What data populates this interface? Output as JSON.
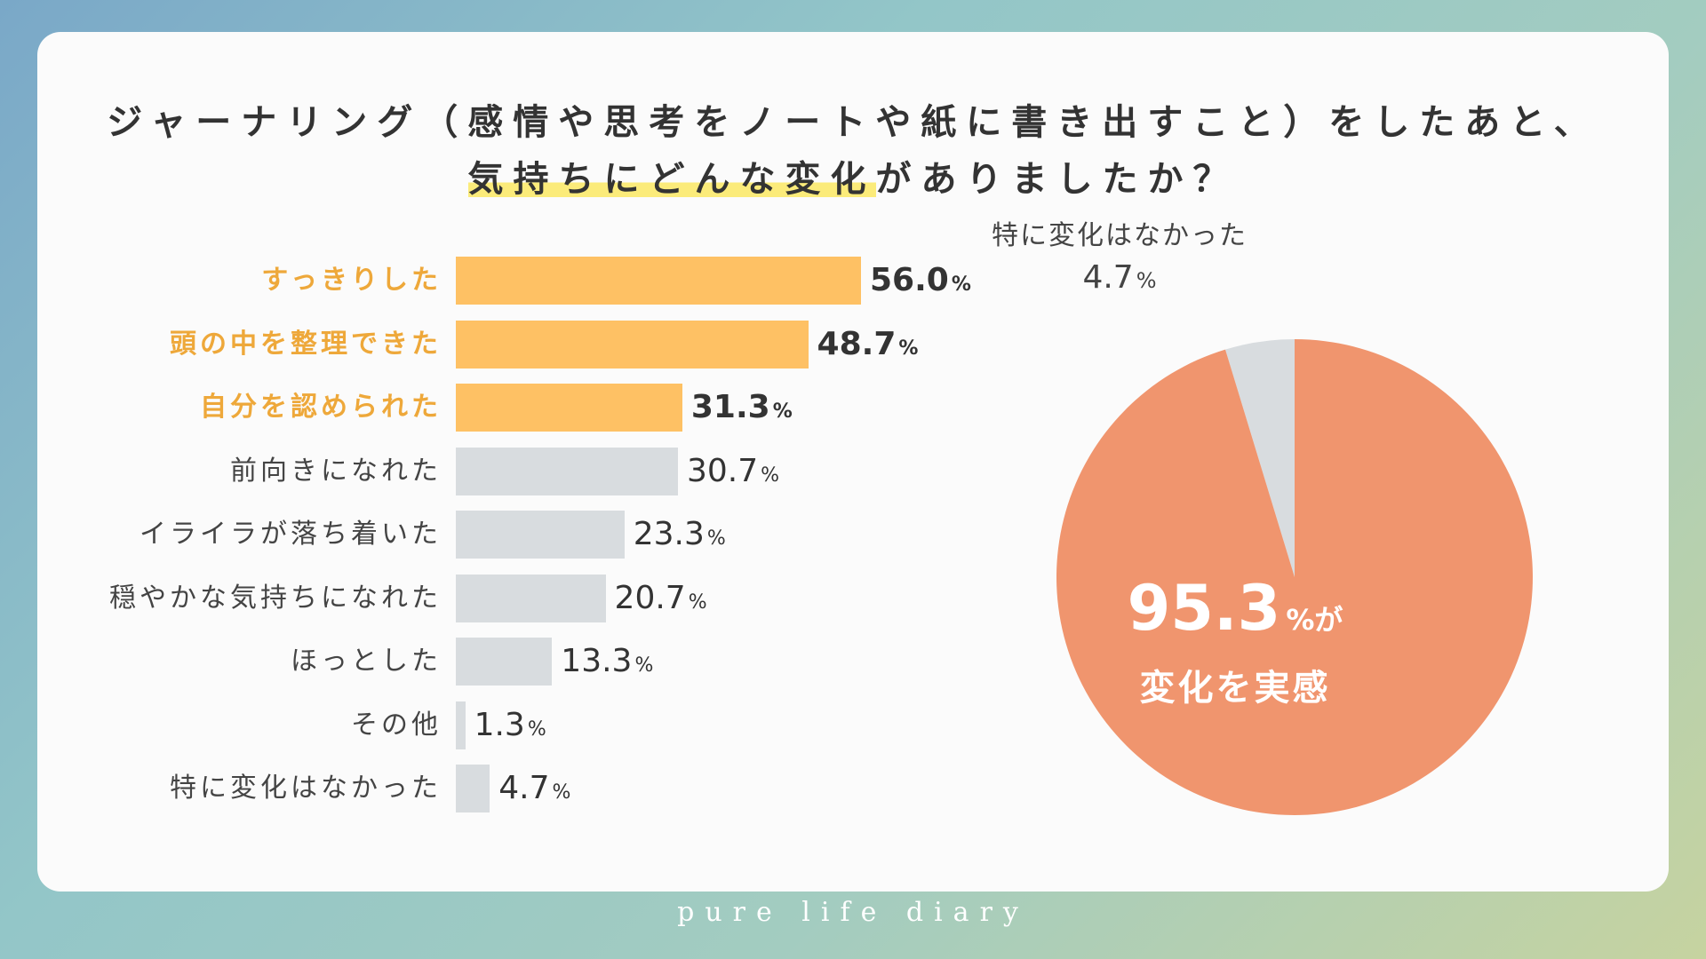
{
  "title": {
    "line1": "ジャーナリング（感情や思考をノートや紙に書き出すこと）をしたあと、",
    "line2_highlight": "気持ちにどんな変化",
    "line2_rest": "がありましたか？"
  },
  "percent_sign": "%",
  "chart_data": [
    {
      "type": "bar",
      "orientation": "horizontal",
      "unit": "%",
      "categories": [
        "すっきりした",
        "頭の中を整理できた",
        "自分を認められた",
        "前向きになれた",
        "イライラが落ち着いた",
        "穏やかな気持ちになれた",
        "ほっとした",
        "その他",
        "特に変化はなかった"
      ],
      "values": [
        56.0,
        48.7,
        31.3,
        30.7,
        23.3,
        20.7,
        13.3,
        1.3,
        4.7
      ],
      "highlighted": [
        true,
        true,
        true,
        false,
        false,
        false,
        false,
        false,
        false
      ],
      "colors": {
        "highlight": "#fec164",
        "highlight_label": "#eea83a",
        "normal": "#d8dcdf"
      }
    },
    {
      "type": "pie",
      "slices": [
        {
          "label": "特に変化はなかった",
          "value": 4.7,
          "color": "#d8dcdf"
        },
        {
          "label": "変化を実感",
          "value": 95.3,
          "color": "#f0956e"
        }
      ],
      "center_value": "95.3",
      "center_suffix": "%が",
      "center_caption": "変化を実感"
    }
  ],
  "footer": "pure life diary"
}
